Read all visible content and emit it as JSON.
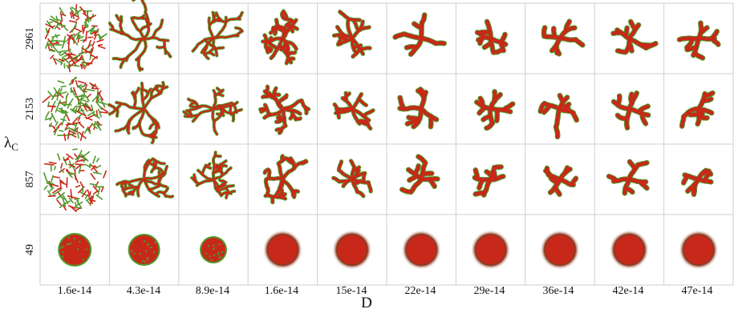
{
  "figure": {
    "y_axis_label": {
      "symbol": "λ",
      "subscript": "C"
    },
    "x_axis_label": "D",
    "rows": [
      "2961",
      "2153",
      "857",
      "49"
    ],
    "columns": [
      "1.6e-14",
      "4.3e-14",
      "8.9e-14",
      "1.6e-14",
      "15e-14",
      "22e-14",
      "29e-14",
      "36e-14",
      "42e-14",
      "47e-14"
    ],
    "colors": {
      "red_core": "#c8281a",
      "green_edge": "#4e9a2a",
      "grid_line": "#cfcfcf",
      "background": "#ffffff"
    }
  }
}
